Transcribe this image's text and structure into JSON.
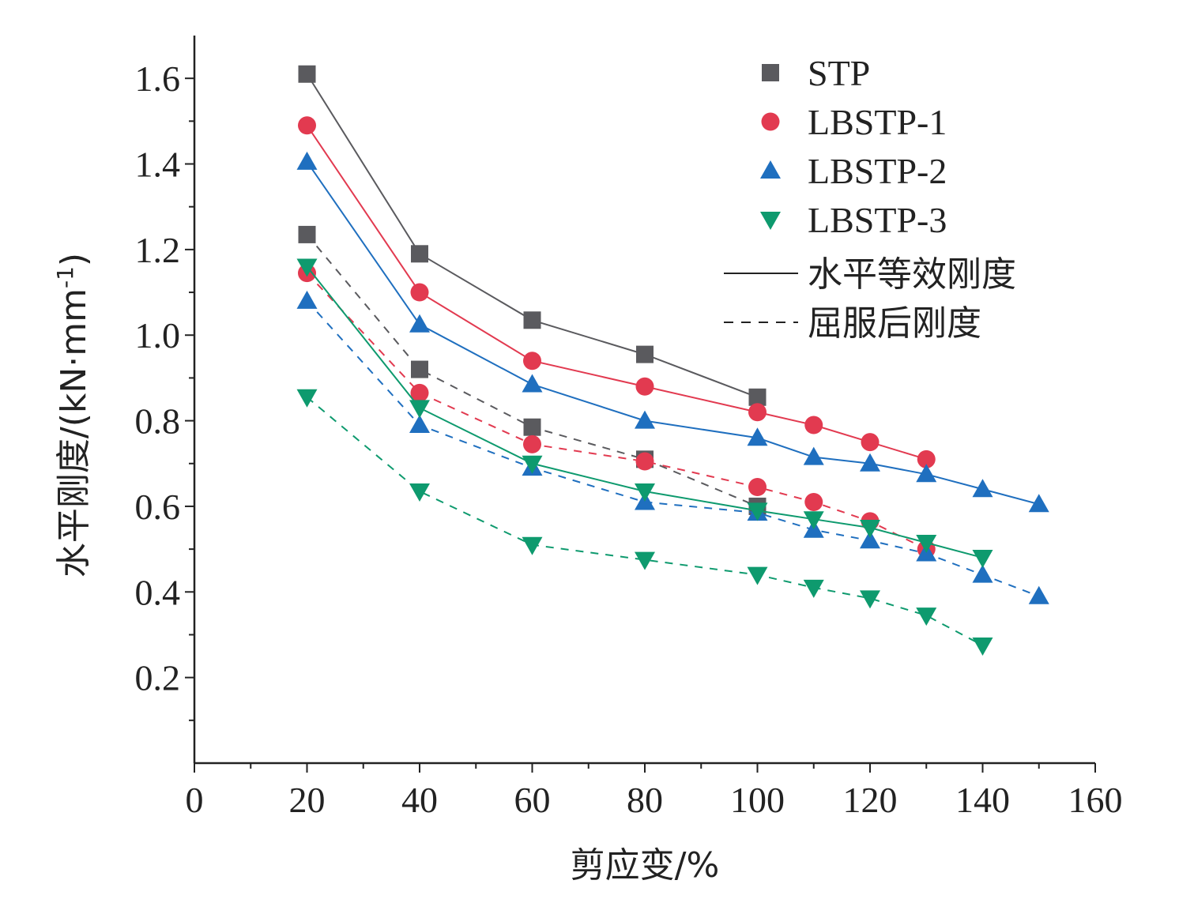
{
  "chart_data": {
    "type": "line",
    "xlabel": "剪应变/%",
    "ylabel": "水平刚度/(kN·mm",
    "ylabel_sup": "-1",
    "ylabel_end": ")",
    "xlim": [
      0,
      160
    ],
    "ylim": [
      0.0,
      1.7
    ],
    "xticks": [
      0,
      20,
      40,
      60,
      80,
      100,
      120,
      140,
      160
    ],
    "xtick_labels": [
      "0",
      "20",
      "40",
      "60",
      "80",
      "100",
      "120",
      "140",
      "160"
    ],
    "yticks": [
      0.2,
      0.4,
      0.6,
      0.8,
      1.0,
      1.2,
      1.4,
      1.6
    ],
    "ytick_labels": [
      "0.2",
      "0.4",
      "0.6",
      "0.8",
      "1.0",
      "1.2",
      "1.4",
      "1.6"
    ],
    "grid": false,
    "legend_position": "top-right",
    "line_styles": [
      {
        "name": "水平等效刚度",
        "dash": "solid"
      },
      {
        "name": "屈服后刚度",
        "dash": "dashed"
      }
    ],
    "series": [
      {
        "name": "STP",
        "marker": "square",
        "color": "#5a5a5e",
        "equivalent": {
          "x": [
            20,
            40,
            60,
            80,
            100
          ],
          "y": [
            1.61,
            1.19,
            1.035,
            0.955,
            0.855
          ]
        },
        "post_yield": {
          "x": [
            20,
            40,
            60,
            80,
            100
          ],
          "y": [
            1.235,
            0.92,
            0.785,
            0.71,
            0.6
          ]
        }
      },
      {
        "name": "LBSTP-1",
        "marker": "circle",
        "color": "#e23a50",
        "equivalent": {
          "x": [
            20,
            40,
            60,
            80,
            100,
            110,
            120,
            130
          ],
          "y": [
            1.49,
            1.1,
            0.94,
            0.88,
            0.82,
            0.79,
            0.75,
            0.71
          ]
        },
        "post_yield": {
          "x": [
            20,
            40,
            60,
            80,
            100,
            110,
            120,
            130
          ],
          "y": [
            1.145,
            0.865,
            0.745,
            0.705,
            0.645,
            0.61,
            0.565,
            0.5
          ]
        }
      },
      {
        "name": "LBSTP-2",
        "marker": "triangle-up",
        "color": "#1f6fbf",
        "equivalent": {
          "x": [
            20,
            40,
            60,
            80,
            100,
            110,
            120,
            130,
            140,
            150
          ],
          "y": [
            1.405,
            1.025,
            0.885,
            0.8,
            0.76,
            0.715,
            0.7,
            0.675,
            0.64,
            0.605
          ]
        },
        "post_yield": {
          "x": [
            20,
            40,
            60,
            80,
            100,
            110,
            120,
            130,
            140,
            150
          ],
          "y": [
            1.08,
            0.79,
            0.69,
            0.61,
            0.585,
            0.545,
            0.52,
            0.49,
            0.44,
            0.39
          ]
        }
      },
      {
        "name": "LBSTP-3",
        "marker": "triangle-down",
        "color": "#0e9a6e",
        "equivalent": {
          "x": [
            20,
            40,
            60,
            80,
            100,
            110,
            120,
            130,
            140
          ],
          "y": [
            1.16,
            0.83,
            0.7,
            0.635,
            0.59,
            0.57,
            0.55,
            0.515,
            0.48
          ]
        },
        "post_yield": {
          "x": [
            20,
            40,
            60,
            80,
            100,
            110,
            120,
            130,
            140
          ],
          "y": [
            0.855,
            0.635,
            0.51,
            0.475,
            0.44,
            0.41,
            0.385,
            0.345,
            0.275
          ]
        }
      }
    ]
  }
}
